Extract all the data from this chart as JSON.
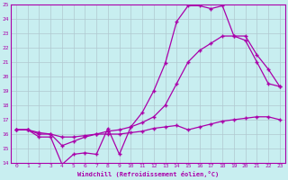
{
  "xlabel": "Windchill (Refroidissement éolien,°C)",
  "bg_color": "#c8eef0",
  "grid_color": "#b0c8d0",
  "line_color": "#aa00aa",
  "line1_x": [
    0,
    1,
    2,
    3,
    4,
    5,
    6,
    7,
    8,
    9,
    10,
    11,
    12,
    13,
    14,
    15,
    16,
    17,
    18,
    19,
    20,
    21,
    22,
    23
  ],
  "line1_y": [
    16.3,
    16.3,
    15.8,
    15.8,
    13.9,
    14.6,
    14.7,
    14.6,
    16.4,
    14.6,
    16.5,
    17.5,
    19.0,
    20.9,
    23.8,
    24.9,
    24.9,
    24.7,
    24.9,
    22.8,
    22.5,
    21.0,
    19.5,
    19.3
  ],
  "line2_x": [
    0,
    1,
    2,
    3,
    4,
    5,
    6,
    7,
    8,
    9,
    10,
    11,
    12,
    13,
    14,
    15,
    16,
    17,
    18,
    19,
    20,
    21,
    22,
    23
  ],
  "line2_y": [
    16.3,
    16.3,
    16.0,
    16.0,
    15.2,
    15.5,
    15.8,
    16.0,
    16.2,
    16.3,
    16.5,
    16.8,
    17.2,
    18.0,
    19.5,
    21.0,
    21.8,
    22.3,
    22.8,
    22.8,
    22.8,
    21.5,
    20.5,
    19.3
  ],
  "line3_x": [
    0,
    1,
    2,
    3,
    4,
    5,
    6,
    7,
    8,
    9,
    10,
    11,
    12,
    13,
    14,
    15,
    16,
    17,
    18,
    19,
    20,
    21,
    22,
    23
  ],
  "line3_y": [
    16.3,
    16.3,
    16.1,
    16.0,
    15.8,
    15.8,
    15.9,
    16.0,
    16.0,
    16.0,
    16.1,
    16.2,
    16.4,
    16.5,
    16.6,
    16.3,
    16.5,
    16.7,
    16.9,
    17.0,
    17.1,
    17.2,
    17.2,
    17.0
  ],
  "ylim": [
    14,
    25
  ],
  "xlim_min": -0.5,
  "xlim_max": 23.5,
  "yticks": [
    14,
    15,
    16,
    17,
    18,
    19,
    20,
    21,
    22,
    23,
    24,
    25
  ],
  "xticks": [
    0,
    1,
    2,
    3,
    4,
    5,
    6,
    7,
    8,
    9,
    10,
    11,
    12,
    13,
    14,
    15,
    16,
    17,
    18,
    19,
    20,
    21,
    22,
    23
  ]
}
